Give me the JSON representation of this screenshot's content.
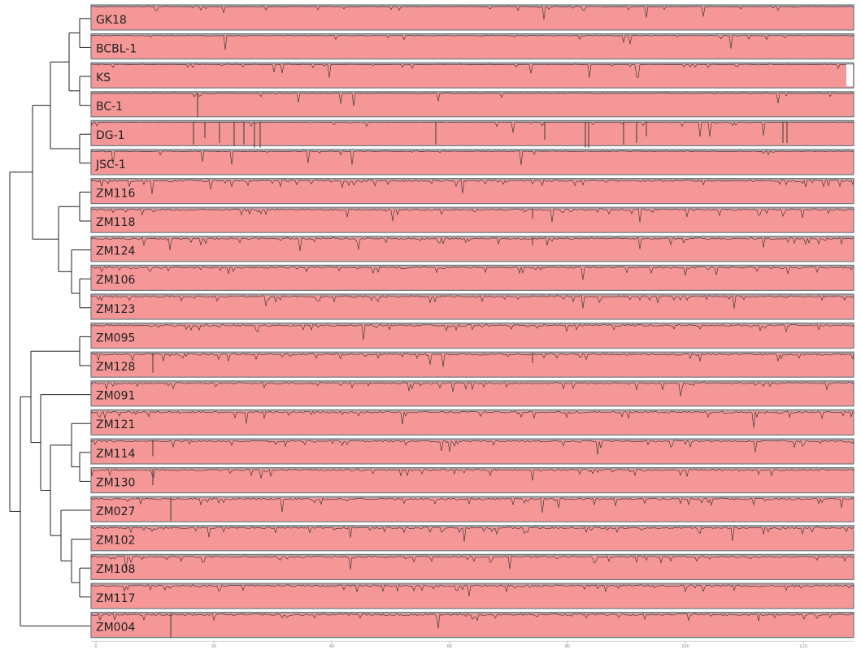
{
  "figure": {
    "track_color": "#f59797",
    "track_border": "#6e7a80",
    "branch_color": "#222222",
    "trace_color": "#2d2d2d"
  },
  "strains": [
    {
      "name": "GK18"
    },
    {
      "name": "BCBL-1"
    },
    {
      "name": "KS"
    },
    {
      "name": "BC-1"
    },
    {
      "name": "DG-1"
    },
    {
      "name": "JSC-1"
    },
    {
      "name": "ZM116"
    },
    {
      "name": "ZM118"
    },
    {
      "name": "ZM124"
    },
    {
      "name": "ZM106"
    },
    {
      "name": "ZM123"
    },
    {
      "name": "ZM095"
    },
    {
      "name": "ZM128"
    },
    {
      "name": "ZM091"
    },
    {
      "name": "ZM121"
    },
    {
      "name": "ZM114"
    },
    {
      "name": "ZM130"
    },
    {
      "name": "ZM027"
    },
    {
      "name": "ZM102"
    },
    {
      "name": "ZM108"
    },
    {
      "name": "ZM117"
    },
    {
      "name": "ZM004"
    }
  ],
  "axis": {
    "ticks": [
      "0",
      "20",
      "40",
      "60",
      "80",
      "100",
      "120"
    ]
  }
}
